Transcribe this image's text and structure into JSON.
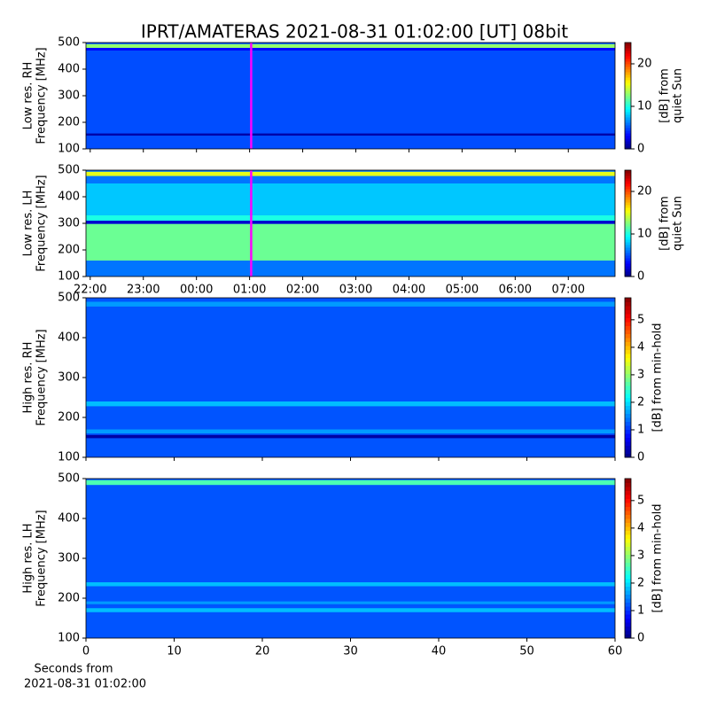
{
  "chart_data": [
    {
      "type": "heatmap",
      "title": "IPRT/AMATERAS 2021-08-31 01:02:00 [UT]   08bit",
      "ylabel": [
        "Low res. RH",
        "Frequency [MHz]"
      ],
      "ylim": [
        100,
        500
      ],
      "yticks": [
        100,
        200,
        300,
        400,
        500
      ],
      "xlim": [
        21.92,
        31.88
      ],
      "xticks": [
        22,
        23,
        24,
        25,
        26,
        27,
        28,
        29,
        30,
        31
      ],
      "xtick_labels": false,
      "colorbar": {
        "label": [
          "[dB] from",
          "quiet Sun"
        ],
        "clim": [
          0,
          25
        ],
        "ticks": [
          0,
          10,
          20
        ]
      },
      "background": 5,
      "bands": [
        {
          "from": 150,
          "to": 158,
          "value": 1
        },
        {
          "from": 470,
          "to": 480,
          "value": 3
        },
        {
          "from": 480,
          "to": 494,
          "value": 13
        }
      ],
      "marker": {
        "x": 25.03,
        "color": "#ff00ff"
      }
    },
    {
      "type": "heatmap",
      "ylabel": [
        "Low res. LH",
        "Frequency [MHz]"
      ],
      "ylim": [
        100,
        500
      ],
      "yticks": [
        100,
        200,
        300,
        400,
        500
      ],
      "xlim": [
        21.92,
        31.88
      ],
      "xticks": [
        {
          "value": 22,
          "label": "22:00"
        },
        {
          "value": 23,
          "label": "23:00"
        },
        {
          "value": 24,
          "label": "00:00"
        },
        {
          "value": 25,
          "label": "01:00"
        },
        {
          "value": 26,
          "label": "02:00"
        },
        {
          "value": 27,
          "label": "03:00"
        },
        {
          "value": 28,
          "label": "04:00"
        },
        {
          "value": 29,
          "label": "05:00"
        },
        {
          "value": 30,
          "label": "06:00"
        },
        {
          "value": 31,
          "label": "07:00"
        }
      ],
      "xtick_labels": true,
      "colorbar": {
        "label": [
          "[dB] from",
          "quiet Sun"
        ],
        "clim": [
          0,
          25
        ],
        "ticks": [
          0,
          10,
          20
        ]
      },
      "background": 6,
      "bands": [
        {
          "from": 160,
          "to": 298,
          "value": 12
        },
        {
          "from": 298,
          "to": 310,
          "value": 2
        },
        {
          "from": 310,
          "to": 330,
          "value": 10
        },
        {
          "from": 330,
          "to": 450,
          "value": 8
        },
        {
          "from": 478,
          "to": 494,
          "value": 15
        }
      ],
      "marker": {
        "x": 25.03,
        "color": "#ff00ff"
      }
    },
    {
      "type": "heatmap",
      "ylabel": [
        "High res. RH",
        "Frequency [MHz]"
      ],
      "ylim": [
        100,
        500
      ],
      "yticks": [
        100,
        200,
        300,
        400,
        500
      ],
      "xlim": [
        0,
        60
      ],
      "xticks": [
        0,
        10,
        20,
        30,
        40,
        50,
        60
      ],
      "xtick_labels": false,
      "colorbar": {
        "label": [
          "[dB] from min-hold"
        ],
        "clim": [
          0,
          5.8
        ],
        "ticks": [
          0,
          1,
          2,
          3,
          4,
          5
        ]
      },
      "background": 1.2,
      "bands": [
        {
          "from": 148,
          "to": 156,
          "value": 0.2
        },
        {
          "from": 160,
          "to": 170,
          "value": 1.6
        },
        {
          "from": 228,
          "to": 240,
          "value": 1.8
        },
        {
          "from": 478,
          "to": 490,
          "value": 1.6
        }
      ]
    },
    {
      "type": "heatmap",
      "ylabel": [
        "High res. LH",
        "Frequency [MHz]"
      ],
      "ylim": [
        100,
        500
      ],
      "yticks": [
        100,
        200,
        300,
        400,
        500
      ],
      "xlim": [
        0,
        60
      ],
      "xticks": [
        0,
        10,
        20,
        30,
        40,
        50,
        60
      ],
      "xtick_labels": true,
      "xlabel": [
        "Seconds from",
        "2021-08-31 01:02:00"
      ],
      "colorbar": {
        "label": [
          "[dB] from min-hold"
        ],
        "clim": [
          0,
          5.8
        ],
        "ticks": [
          0,
          1,
          2,
          3,
          4,
          5
        ]
      },
      "background": 1.2,
      "bands": [
        {
          "from": 165,
          "to": 175,
          "value": 1.8
        },
        {
          "from": 185,
          "to": 192,
          "value": 1.6
        },
        {
          "from": 230,
          "to": 240,
          "value": 1.8
        },
        {
          "from": 484,
          "to": 496,
          "value": 2.6
        }
      ]
    }
  ]
}
